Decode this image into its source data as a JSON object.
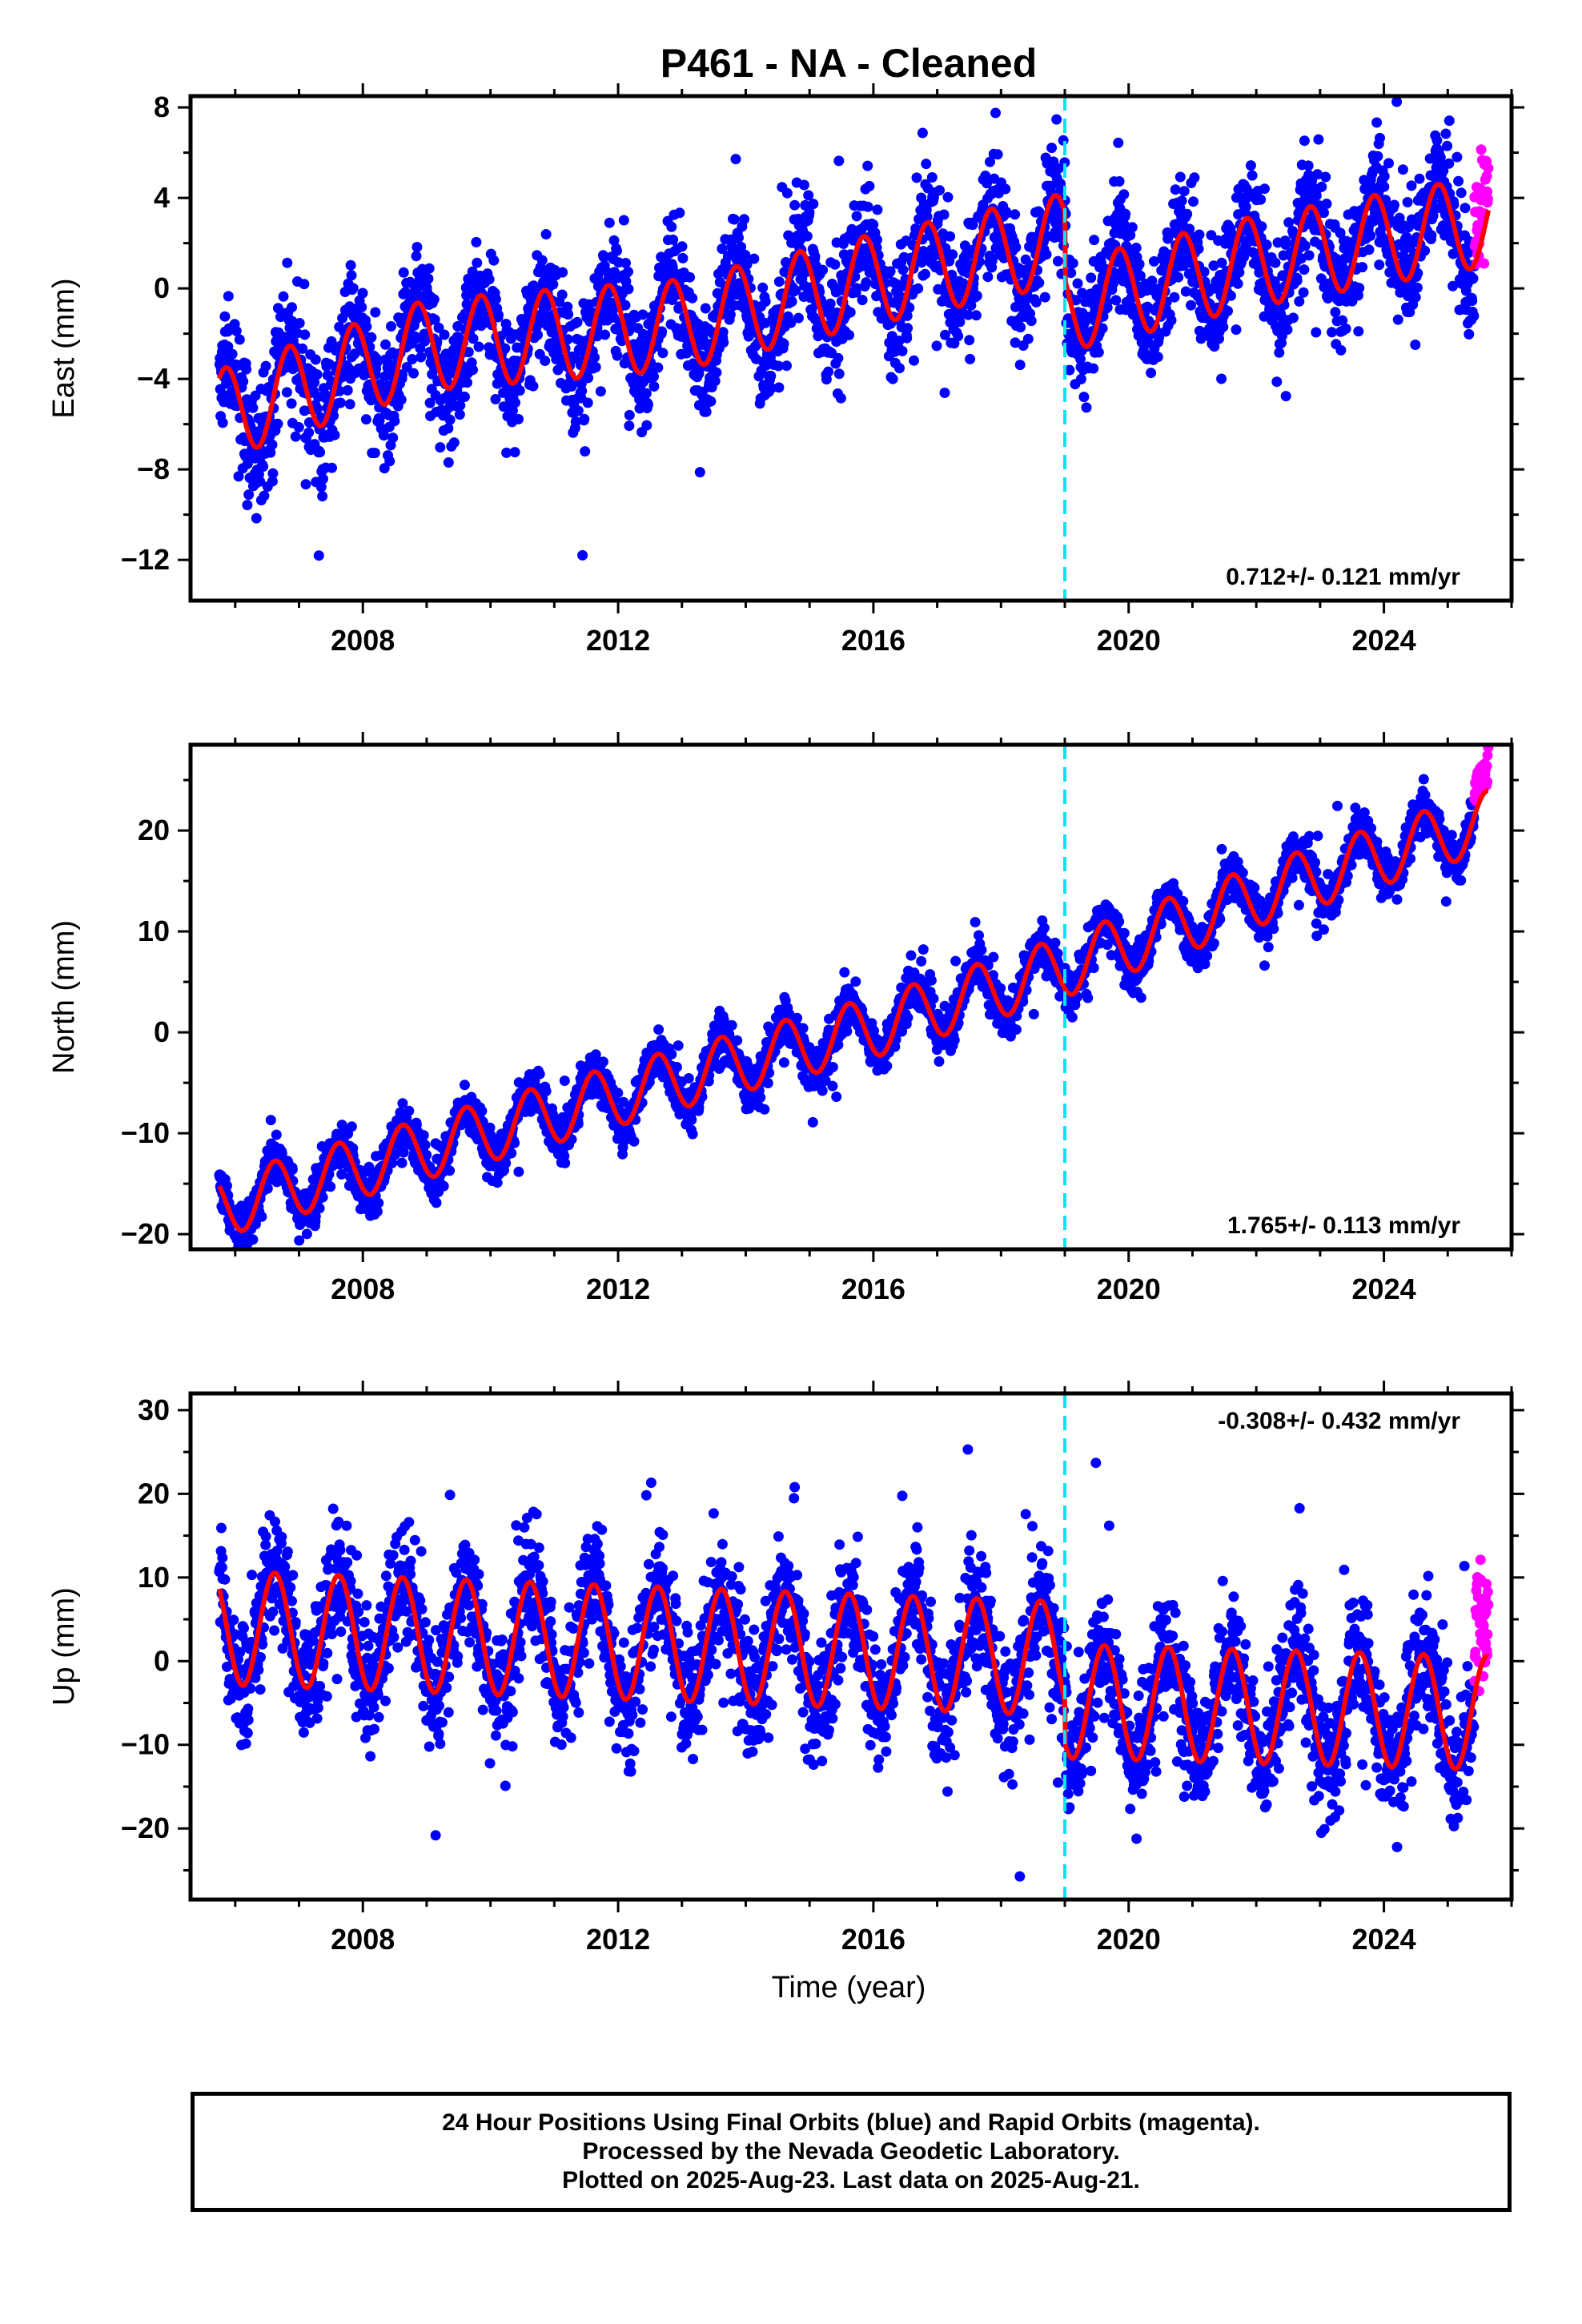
{
  "title": "P461  - NA - Cleaned",
  "xlabel": "Time (year)",
  "footer": {
    "line1": "24 Hour Positions Using Final Orbits (blue) and Rapid Orbits (magenta).",
    "line2": "Processed by the Nevada Geodetic Laboratory.",
    "line3": "Plotted on 2025-Aug-23. Last data on 2025-Aug-21."
  },
  "colors": {
    "final_orbits": "#0000ff",
    "rapid_orbits": "#ff00ff",
    "model_fit": "#ff0000",
    "event_line": "#00e5ee",
    "axes": "#000000"
  },
  "chart_data": [
    {
      "type": "scatter",
      "component": "east",
      "ylabel": "East (mm)",
      "rate_label": "0.712+/- 0.121 mm/yr",
      "rate_label_position": "bottom-right",
      "xlim": [
        2005.3,
        2026.0
      ],
      "ylim": [
        -13.8,
        8.5
      ],
      "xticks": [
        2008,
        2012,
        2016,
        2020,
        2024
      ],
      "yticks": [
        -12,
        -8,
        -4,
        0,
        4,
        8
      ],
      "data_range": [
        2005.75,
        2025.64
      ],
      "event_line_year": 2019.0,
      "rapid_orbits_start": 2025.42,
      "trend_knots": [
        [
          2005.75,
          -5.6
        ],
        [
          2009.0,
          -2.5
        ],
        [
          2013.0,
          -1.6
        ],
        [
          2016.0,
          0.4
        ],
        [
          2019.0,
          2.2
        ],
        [
          2019.01,
          -0.8
        ],
        [
          2022.0,
          1.2
        ],
        [
          2025.64,
          3.0
        ]
      ],
      "seasonal_amplitude": 2.0,
      "seasonal_phase_year": 0.85,
      "scatter_sigma": 1.3,
      "grid": false
    },
    {
      "type": "scatter",
      "component": "north",
      "ylabel": "North (mm)",
      "rate_label": "1.765+/- 0.113 mm/yr",
      "rate_label_position": "bottom-right",
      "xlim": [
        2005.3,
        2026.0
      ],
      "ylim": [
        -21.5,
        28.5
      ],
      "xticks": [
        2008,
        2012,
        2016,
        2020,
        2024
      ],
      "yticks": [
        -20,
        -10,
        0,
        10,
        20
      ],
      "data_range": [
        2005.75,
        2025.64
      ],
      "event_line_year": 2019.0,
      "rapid_orbits_start": 2025.42,
      "trend_knots": [
        [
          2005.75,
          -17.3
        ],
        [
          2009.0,
          -11.5
        ],
        [
          2013.0,
          -4.5
        ],
        [
          2016.0,
          0.5
        ],
        [
          2019.0,
          6.5
        ],
        [
          2022.0,
          13.5
        ],
        [
          2025.64,
          21.0
        ]
      ],
      "seasonal_amplitude": 3.0,
      "seasonal_phase_year": 0.62,
      "scatter_sigma": 1.1,
      "grid": false
    },
    {
      "type": "scatter",
      "component": "up",
      "ylabel": "Up (mm)",
      "rate_label": "-0.308+/- 0.432 mm/yr",
      "rate_label_position": "top-right",
      "xlim": [
        2005.3,
        2026.0
      ],
      "ylim": [
        -28.5,
        32.0
      ],
      "xticks": [
        2008,
        2012,
        2016,
        2020,
        2024
      ],
      "yticks": [
        -20,
        -10,
        0,
        10,
        20,
        30
      ],
      "data_range": [
        2005.75,
        2025.64
      ],
      "event_line_year": 2019.0,
      "rapid_orbits_start": 2025.42,
      "trend_knots": [
        [
          2005.75,
          4.0
        ],
        [
          2019.0,
          0.3
        ],
        [
          2019.01,
          -4.8
        ],
        [
          2025.64,
          -6.2
        ]
      ],
      "seasonal_amplitude": 6.8,
      "seasonal_phase_year": 0.62,
      "scatter_sigma": 3.6,
      "grid": false
    }
  ]
}
